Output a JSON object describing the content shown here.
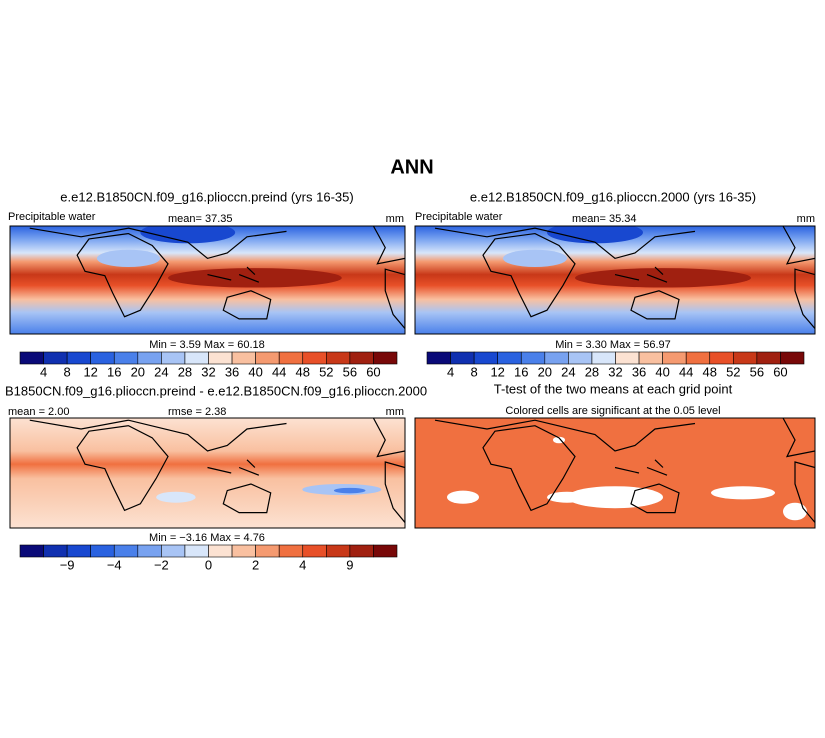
{
  "title": "ANN",
  "panels": [
    {
      "title": "e.e12.B1850CN.f09_g16.plioccn.preind (yrs 16-35)",
      "variable": "Precipitable water",
      "mean": "mean=  37.35",
      "units": "mm",
      "min_max": "Min =    3.59  Max =   60.18",
      "colorbar": {
        "colors": [
          "#0a0a78",
          "#1030b0",
          "#1848d0",
          "#2a62e0",
          "#4a80ea",
          "#78a2f0",
          "#a8c4f5",
          "#d8e6fa",
          "#fce2d2",
          "#f9c0a0",
          "#f59a70",
          "#f07040",
          "#e85028",
          "#c83818",
          "#a02010",
          "#780808"
        ],
        "labels": [
          "4",
          "8",
          "12",
          "16",
          "20",
          "24",
          "28",
          "32",
          "36",
          "40",
          "44",
          "48",
          "52",
          "56",
          "60"
        ]
      }
    },
    {
      "title": "e.e12.B1850CN.f09_g16.plioccn.2000 (yrs 16-35)",
      "variable": "Precipitable water",
      "mean": "mean=  35.34",
      "units": "mm",
      "min_max": "Min =    3.30  Max =   56.97",
      "colorbar": {
        "colors": [
          "#0a0a78",
          "#1030b0",
          "#1848d0",
          "#2a62e0",
          "#4a80ea",
          "#78a2f0",
          "#a8c4f5",
          "#d8e6fa",
          "#fce2d2",
          "#f9c0a0",
          "#f59a70",
          "#f07040",
          "#e85028",
          "#c83818",
          "#a02010",
          "#780808"
        ],
        "labels": [
          "4",
          "8",
          "12",
          "16",
          "20",
          "24",
          "28",
          "32",
          "36",
          "40",
          "44",
          "48",
          "52",
          "56",
          "60"
        ]
      }
    },
    {
      "title": "B1850CN.f09_g16.plioccn.preind - e.e12.B1850CN.f09_g16.plioccn.2000",
      "mean": "mean =   2.00",
      "rmse": "rmse =   2.38",
      "units": "mm",
      "min_max": "Min =  −3.16  Max =    4.76",
      "colorbar": {
        "colors": [
          "#0a0a78",
          "#1030b0",
          "#1848d0",
          "#2a62e0",
          "#4a80ea",
          "#78a2f0",
          "#a8c4f5",
          "#d8e6fa",
          "#fce2d2",
          "#f9c0a0",
          "#f59a70",
          "#f07040",
          "#e85028",
          "#c83818",
          "#a02010",
          "#780808"
        ],
        "labels": [
          "−9",
          "−4",
          "−2",
          "0",
          "2",
          "4",
          "9"
        ]
      }
    },
    {
      "title": "T-test of the two means at each grid point",
      "subtitle": "Colored cells are significant at the 0.05 level"
    }
  ]
}
